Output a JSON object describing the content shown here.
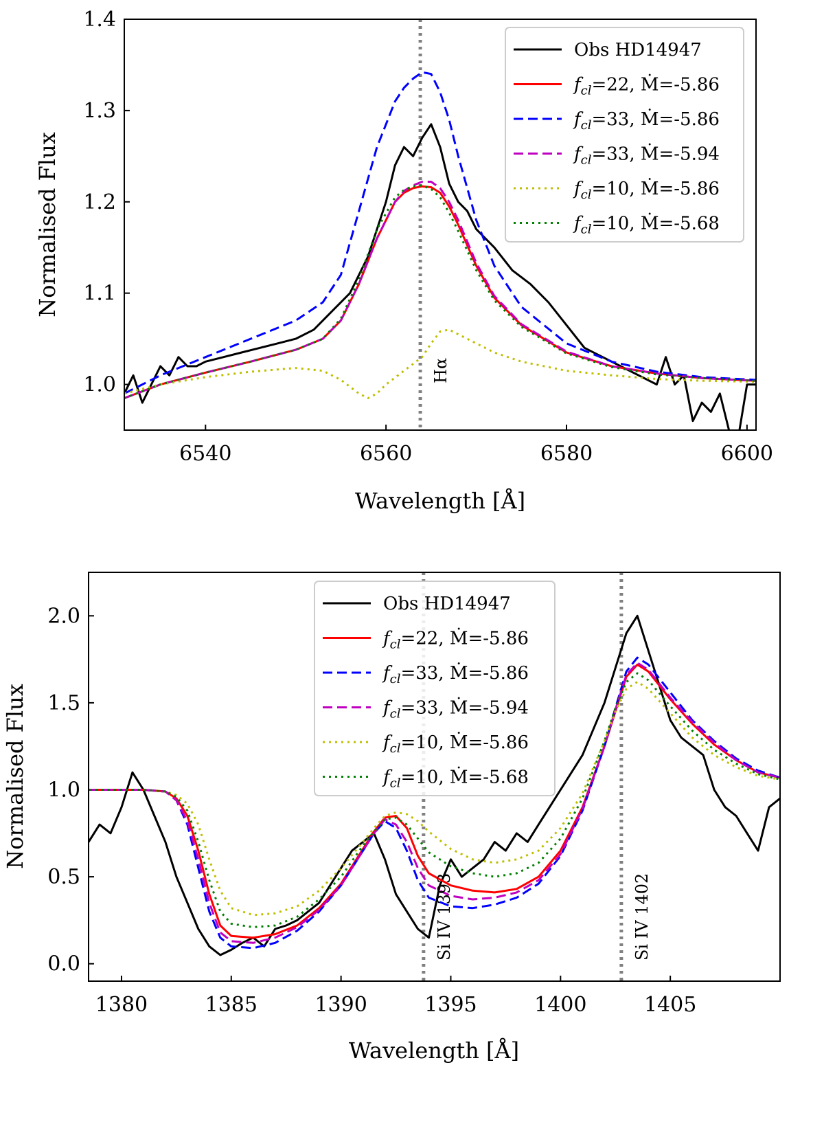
{
  "chart_data": [
    {
      "id": "halpha",
      "type": "line",
      "title": "",
      "xlabel": "Wavelength [Å]",
      "ylabel": "Normalised Flux",
      "xlim": [
        6531,
        6601
      ],
      "ylim": [
        0.95,
        1.4
      ],
      "xticks": [
        6540,
        6560,
        6580,
        6600
      ],
      "yticks": [
        1.0,
        1.1,
        1.2,
        1.3,
        1.4
      ],
      "xtick_labels": [
        "6540",
        "6560",
        "6580",
        "6600"
      ],
      "ytick_labels": [
        "1.0",
        "1.1",
        "1.2",
        "1.3",
        "1.4"
      ],
      "legend_position": "top-right",
      "annotations": [
        {
          "x": 6563.8,
          "label": "Hα"
        }
      ],
      "series": [
        {
          "name": "Obs HD14947",
          "color": "#000000",
          "style": "solid",
          "x": [
            6531,
            6532,
            6533,
            6534,
            6535,
            6536,
            6537,
            6538,
            6539,
            6540,
            6542,
            6544,
            6546,
            6548,
            6550,
            6552,
            6554,
            6556,
            6558,
            6560,
            6561,
            6562,
            6563,
            6564,
            6565,
            6566,
            6567,
            6568,
            6569,
            6570,
            6572,
            6574,
            6576,
            6578,
            6580,
            6582,
            6584,
            6586,
            6588,
            6590,
            6591,
            6592,
            6593,
            6594,
            6595,
            6596,
            6597,
            6598,
            6599,
            6600,
            6601
          ],
          "y": [
            0.99,
            1.01,
            0.98,
            1.0,
            1.02,
            1.01,
            1.03,
            1.02,
            1.02,
            1.025,
            1.03,
            1.035,
            1.04,
            1.045,
            1.05,
            1.06,
            1.08,
            1.1,
            1.14,
            1.2,
            1.24,
            1.26,
            1.25,
            1.27,
            1.285,
            1.26,
            1.22,
            1.2,
            1.19,
            1.17,
            1.15,
            1.125,
            1.11,
            1.09,
            1.065,
            1.04,
            1.03,
            1.02,
            1.01,
            1.0,
            1.03,
            1.0,
            1.01,
            0.96,
            0.98,
            0.97,
            0.99,
            0.95,
            0.94,
            1.0,
            1.0
          ]
        },
        {
          "name": "f_cl=22, Ṁ=-5.86",
          "color": "#ff0000",
          "style": "solid",
          "x": [
            6531,
            6535,
            6540,
            6545,
            6550,
            6553,
            6555,
            6557,
            6559,
            6561,
            6562,
            6563,
            6564,
            6565,
            6566,
            6567,
            6568,
            6570,
            6572,
            6575,
            6580,
            6585,
            6590,
            6595,
            6601
          ],
          "y": [
            0.985,
            1.0,
            1.013,
            1.025,
            1.038,
            1.05,
            1.07,
            1.11,
            1.16,
            1.2,
            1.21,
            1.215,
            1.217,
            1.216,
            1.21,
            1.195,
            1.175,
            1.13,
            1.095,
            1.065,
            1.035,
            1.02,
            1.012,
            1.007,
            1.004
          ]
        },
        {
          "name": "f_cl=33, Ṁ=-5.86",
          "color": "#0000ff",
          "style": "dashed",
          "x": [
            6531,
            6535,
            6540,
            6545,
            6550,
            6553,
            6555,
            6557,
            6559,
            6561,
            6562,
            6563,
            6564,
            6565,
            6566,
            6567,
            6568,
            6570,
            6572,
            6575,
            6580,
            6585,
            6590,
            6595,
            6601
          ],
          "y": [
            0.99,
            1.01,
            1.03,
            1.05,
            1.07,
            1.09,
            1.12,
            1.19,
            1.26,
            1.31,
            1.325,
            1.335,
            1.342,
            1.34,
            1.32,
            1.29,
            1.25,
            1.18,
            1.13,
            1.085,
            1.045,
            1.025,
            1.014,
            1.008,
            1.005
          ]
        },
        {
          "name": "f_cl=33, Ṁ=-5.94",
          "color": "#c000c0",
          "style": "dashed",
          "x": [
            6531,
            6535,
            6540,
            6545,
            6550,
            6553,
            6555,
            6557,
            6559,
            6561,
            6562,
            6563,
            6564,
            6565,
            6566,
            6567,
            6568,
            6570,
            6572,
            6575,
            6580,
            6585,
            6590,
            6595,
            6601
          ],
          "y": [
            0.985,
            1.0,
            1.013,
            1.025,
            1.038,
            1.05,
            1.07,
            1.11,
            1.16,
            1.2,
            1.212,
            1.218,
            1.222,
            1.222,
            1.215,
            1.2,
            1.18,
            1.133,
            1.097,
            1.066,
            1.036,
            1.02,
            1.012,
            1.007,
            1.004
          ]
        },
        {
          "name": "f_cl=10, Ṁ=-5.86",
          "color": "#bfbf00",
          "style": "dotted",
          "x": [
            6531,
            6535,
            6540,
            6545,
            6550,
            6553,
            6555,
            6557,
            6558,
            6559,
            6560,
            6562,
            6564,
            6565,
            6566,
            6567,
            6568,
            6570,
            6572,
            6575,
            6580,
            6585,
            6590,
            6595,
            6601
          ],
          "y": [
            0.99,
            1.0,
            1.008,
            1.014,
            1.018,
            1.015,
            1.005,
            0.99,
            0.985,
            0.99,
            1.0,
            1.015,
            1.03,
            1.045,
            1.058,
            1.06,
            1.055,
            1.045,
            1.035,
            1.025,
            1.015,
            1.01,
            1.006,
            1.004,
            1.003
          ]
        },
        {
          "name": "f_cl=10, Ṁ=-5.68",
          "color": "#008000",
          "style": "dotted",
          "x": [
            6531,
            6535,
            6540,
            6545,
            6550,
            6553,
            6555,
            6557,
            6559,
            6561,
            6562,
            6563,
            6564,
            6565,
            6566,
            6567,
            6568,
            6570,
            6572,
            6575,
            6580,
            6585,
            6590,
            6595,
            6601
          ],
          "y": [
            0.985,
            1.0,
            1.013,
            1.025,
            1.038,
            1.05,
            1.072,
            1.115,
            1.17,
            1.205,
            1.213,
            1.217,
            1.218,
            1.214,
            1.205,
            1.188,
            1.168,
            1.125,
            1.092,
            1.063,
            1.034,
            1.019,
            1.011,
            1.007,
            1.004
          ]
        }
      ]
    },
    {
      "id": "siiv",
      "type": "line",
      "title": "",
      "xlabel": "Wavelength [Å]",
      "ylabel": "Normalised Flux",
      "xlim": [
        1378.5,
        1410
      ],
      "ylim": [
        -0.1,
        2.25
      ],
      "xticks": [
        1380,
        1385,
        1390,
        1395,
        1400,
        1405
      ],
      "yticks": [
        0.0,
        0.5,
        1.0,
        1.5,
        2.0
      ],
      "xtick_labels": [
        "1380",
        "1385",
        "1390",
        "1395",
        "1400",
        "1405"
      ],
      "ytick_labels": [
        "0.0",
        "0.5",
        "1.0",
        "1.5",
        "2.0"
      ],
      "legend_position": "top-center",
      "annotations": [
        {
          "x": 1393.76,
          "label": "Si IV 1393"
        },
        {
          "x": 1402.77,
          "label": "Si IV 1402"
        }
      ],
      "series": [
        {
          "name": "Obs HD14947",
          "color": "#000000",
          "style": "solid",
          "x": [
            1378.5,
            1379,
            1379.5,
            1380,
            1380.5,
            1381,
            1381.5,
            1382,
            1382.5,
            1383,
            1383.5,
            1384,
            1384.5,
            1385,
            1385.5,
            1386,
            1386.5,
            1387,
            1387.5,
            1388,
            1388.5,
            1389,
            1389.5,
            1390,
            1390.5,
            1391,
            1391.5,
            1392,
            1392.5,
            1393,
            1393.5,
            1394,
            1394.5,
            1395,
            1395.5,
            1396,
            1396.5,
            1397,
            1397.5,
            1398,
            1398.5,
            1399,
            1399.5,
            1400,
            1400.5,
            1401,
            1401.5,
            1402,
            1402.5,
            1403,
            1403.5,
            1404,
            1404.5,
            1405,
            1405.5,
            1406,
            1406.5,
            1407,
            1407.5,
            1408,
            1408.5,
            1409,
            1409.5,
            1410
          ],
          "y": [
            0.7,
            0.8,
            0.75,
            0.9,
            1.1,
            1.0,
            0.85,
            0.7,
            0.5,
            0.35,
            0.2,
            0.1,
            0.05,
            0.08,
            0.12,
            0.15,
            0.1,
            0.2,
            0.22,
            0.25,
            0.3,
            0.35,
            0.45,
            0.55,
            0.65,
            0.7,
            0.75,
            0.6,
            0.4,
            0.3,
            0.2,
            0.15,
            0.45,
            0.6,
            0.5,
            0.55,
            0.6,
            0.7,
            0.65,
            0.75,
            0.7,
            0.8,
            0.9,
            1.0,
            1.1,
            1.2,
            1.35,
            1.5,
            1.7,
            1.9,
            2.0,
            1.8,
            1.6,
            1.4,
            1.3,
            1.25,
            1.2,
            1.0,
            0.9,
            0.85,
            0.75,
            0.65,
            0.9,
            0.95
          ]
        },
        {
          "name": "f_cl=22, Ṁ=-5.86",
          "color": "#ff0000",
          "style": "solid",
          "x": [
            1378.5,
            1380,
            1381,
            1382,
            1382.5,
            1383,
            1383.5,
            1384,
            1384.5,
            1385,
            1386,
            1387,
            1388,
            1389,
            1390,
            1391,
            1391.5,
            1392,
            1392.5,
            1393,
            1393.5,
            1394,
            1395,
            1396,
            1397,
            1398,
            1399,
            1400,
            1401,
            1402,
            1402.5,
            1403,
            1403.5,
            1404,
            1405,
            1406,
            1407,
            1408,
            1409,
            1410
          ],
          "y": [
            1.0,
            1.0,
            1.0,
            0.99,
            0.95,
            0.85,
            0.65,
            0.4,
            0.22,
            0.16,
            0.15,
            0.17,
            0.22,
            0.32,
            0.46,
            0.66,
            0.76,
            0.84,
            0.85,
            0.78,
            0.62,
            0.52,
            0.45,
            0.42,
            0.41,
            0.43,
            0.5,
            0.65,
            0.9,
            1.25,
            1.45,
            1.65,
            1.72,
            1.68,
            1.52,
            1.38,
            1.26,
            1.17,
            1.1,
            1.07
          ]
        },
        {
          "name": "f_cl=33, Ṁ=-5.86",
          "color": "#0000ff",
          "style": "dashed",
          "x": [
            1378.5,
            1380,
            1381,
            1382,
            1382.5,
            1383,
            1383.5,
            1384,
            1384.5,
            1385,
            1386,
            1387,
            1388,
            1389,
            1390,
            1391,
            1391.5,
            1392,
            1392.5,
            1393,
            1393.5,
            1394,
            1395,
            1396,
            1397,
            1398,
            1399,
            1400,
            1401,
            1402,
            1402.5,
            1403,
            1403.5,
            1404,
            1405,
            1406,
            1407,
            1408,
            1409,
            1410
          ],
          "y": [
            1.0,
            1.0,
            1.0,
            0.99,
            0.94,
            0.8,
            0.55,
            0.3,
            0.15,
            0.1,
            0.09,
            0.12,
            0.19,
            0.3,
            0.45,
            0.65,
            0.75,
            0.82,
            0.78,
            0.65,
            0.48,
            0.38,
            0.33,
            0.32,
            0.34,
            0.38,
            0.46,
            0.62,
            0.88,
            1.25,
            1.47,
            1.68,
            1.76,
            1.72,
            1.56,
            1.4,
            1.28,
            1.18,
            1.11,
            1.07
          ]
        },
        {
          "name": "f_cl=33, Ṁ=-5.94",
          "color": "#c000c0",
          "style": "dashed",
          "x": [
            1378.5,
            1380,
            1381,
            1382,
            1382.5,
            1383,
            1383.5,
            1384,
            1384.5,
            1385,
            1386,
            1387,
            1388,
            1389,
            1390,
            1391,
            1391.5,
            1392,
            1392.5,
            1393,
            1393.5,
            1394,
            1395,
            1396,
            1397,
            1398,
            1399,
            1400,
            1401,
            1402,
            1402.5,
            1403,
            1403.5,
            1404,
            1405,
            1406,
            1407,
            1408,
            1409,
            1410
          ],
          "y": [
            1.0,
            1.0,
            1.0,
            0.99,
            0.94,
            0.82,
            0.6,
            0.35,
            0.18,
            0.13,
            0.12,
            0.15,
            0.21,
            0.31,
            0.45,
            0.65,
            0.75,
            0.83,
            0.8,
            0.7,
            0.55,
            0.45,
            0.39,
            0.37,
            0.38,
            0.41,
            0.48,
            0.63,
            0.89,
            1.25,
            1.46,
            1.66,
            1.73,
            1.69,
            1.53,
            1.39,
            1.27,
            1.17,
            1.1,
            1.07
          ]
        },
        {
          "name": "f_cl=10, Ṁ=-5.86",
          "color": "#bfbf00",
          "style": "dotted",
          "x": [
            1378.5,
            1380,
            1381,
            1382,
            1382.5,
            1383,
            1383.5,
            1384,
            1384.5,
            1385,
            1386,
            1387,
            1388,
            1389,
            1390,
            1391,
            1391.5,
            1392,
            1392.5,
            1393,
            1393.5,
            1394,
            1395,
            1396,
            1397,
            1398,
            1399,
            1400,
            1401,
            1402,
            1402.5,
            1403,
            1403.5,
            1404,
            1405,
            1406,
            1407,
            1408,
            1409,
            1410
          ],
          "y": [
            1.0,
            1.0,
            1.0,
            0.99,
            0.97,
            0.92,
            0.8,
            0.6,
            0.42,
            0.32,
            0.28,
            0.29,
            0.33,
            0.42,
            0.55,
            0.7,
            0.78,
            0.85,
            0.87,
            0.86,
            0.82,
            0.76,
            0.66,
            0.6,
            0.58,
            0.6,
            0.65,
            0.78,
            0.98,
            1.28,
            1.45,
            1.58,
            1.62,
            1.58,
            1.44,
            1.3,
            1.2,
            1.13,
            1.08,
            1.06
          ]
        },
        {
          "name": "f_cl=10, Ṁ=-5.68",
          "color": "#008000",
          "style": "dotted",
          "x": [
            1378.5,
            1380,
            1381,
            1382,
            1382.5,
            1383,
            1383.5,
            1384,
            1384.5,
            1385,
            1386,
            1387,
            1388,
            1389,
            1390,
            1391,
            1391.5,
            1392,
            1392.5,
            1393,
            1393.5,
            1394,
            1395,
            1396,
            1397,
            1398,
            1399,
            1400,
            1401,
            1402,
            1402.5,
            1403,
            1403.5,
            1404,
            1405,
            1406,
            1407,
            1408,
            1409,
            1410
          ],
          "y": [
            1.0,
            1.0,
            1.0,
            0.99,
            0.96,
            0.88,
            0.7,
            0.48,
            0.3,
            0.23,
            0.21,
            0.22,
            0.27,
            0.37,
            0.5,
            0.68,
            0.76,
            0.83,
            0.84,
            0.8,
            0.72,
            0.64,
            0.56,
            0.52,
            0.5,
            0.52,
            0.58,
            0.72,
            0.95,
            1.28,
            1.47,
            1.62,
            1.67,
            1.63,
            1.48,
            1.34,
            1.23,
            1.15,
            1.09,
            1.06
          ]
        }
      ]
    }
  ]
}
